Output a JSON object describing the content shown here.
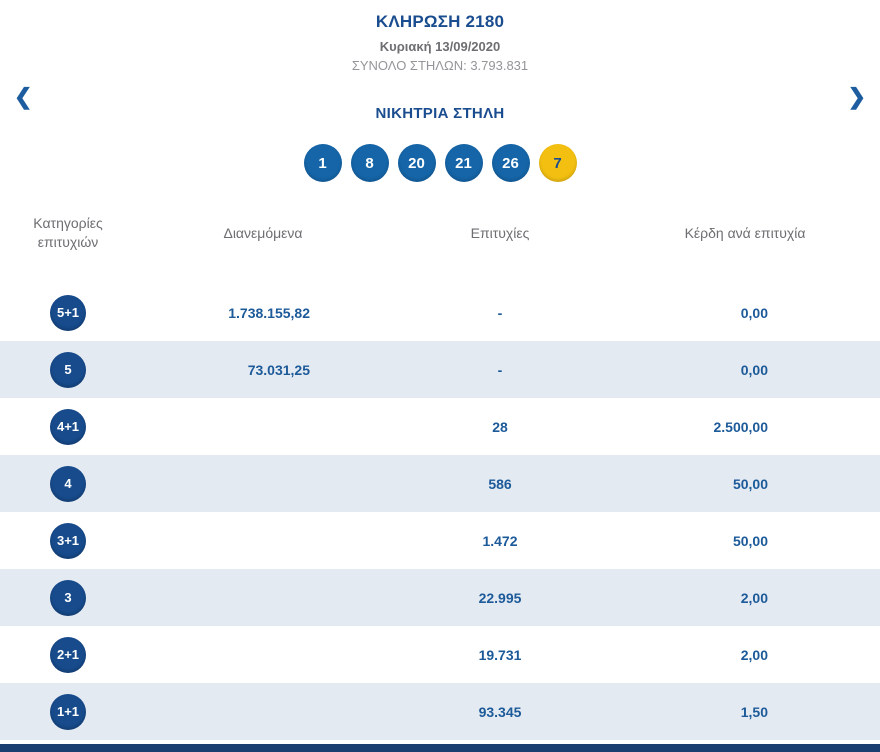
{
  "header": {
    "title": "ΚΛΗΡΩΣΗ 2180",
    "date": "Κυριακή 13/09/2020",
    "total": "ΣΥΝΟΛΟ ΣΤΗΛΩΝ: 3.793.831",
    "prev_icon": "❮",
    "next_icon": "❯"
  },
  "winning": {
    "title": "ΝΙΚΗΤΡΙΑ ΣΤΗΛΗ",
    "numbers": [
      "1",
      "8",
      "20",
      "21",
      "26"
    ],
    "joker": "7"
  },
  "table": {
    "headers": [
      "Κατηγορίες επιτυχιών",
      "Διανεμόμενα",
      "Επιτυχίες",
      "Κέρδη ανά επιτυχία"
    ],
    "rows": [
      {
        "category": "5+1",
        "distributed": "1.738.155,82",
        "winners": "-",
        "prize": "0,00"
      },
      {
        "category": "5",
        "distributed": "73.031,25",
        "winners": "-",
        "prize": "0,00"
      },
      {
        "category": "4+1",
        "distributed": "",
        "winners": "28",
        "prize": "2.500,00"
      },
      {
        "category": "4",
        "distributed": "",
        "winners": "586",
        "prize": "50,00"
      },
      {
        "category": "3+1",
        "distributed": "",
        "winners": "1.472",
        "prize": "50,00"
      },
      {
        "category": "3",
        "distributed": "",
        "winners": "22.995",
        "prize": "2,00"
      },
      {
        "category": "2+1",
        "distributed": "",
        "winners": "19.731",
        "prize": "2,00"
      },
      {
        "category": "1+1",
        "distributed": "",
        "winners": "93.345",
        "prize": "1,50"
      }
    ]
  },
  "colors": {
    "navy": "#1a4d8f",
    "ball_blue": "#1565a8",
    "joker_yellow": "#f3c011",
    "row_alt": "#e4eaf2",
    "header_gray": "#6d6e71",
    "value_blue": "#1c5a99",
    "footer_navy": "#1b3e71"
  }
}
